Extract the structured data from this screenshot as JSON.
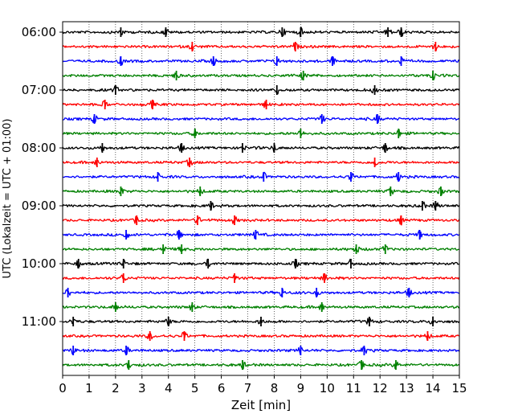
{
  "chart_data": {
    "type": "line",
    "title": "",
    "xlabel": "Zeit  [min]",
    "ylabel": "UTC (Lokalzeit = UTC + 01:00)",
    "xlim": [
      0,
      15
    ],
    "x_ticks": [
      0,
      1,
      2,
      3,
      4,
      5,
      6,
      7,
      8,
      9,
      10,
      11,
      12,
      13,
      14,
      15
    ],
    "y_tick_labels": [
      "06:00",
      "07:00",
      "08:00",
      "09:00",
      "10:00",
      "11:00"
    ],
    "grid": "vertical dotted",
    "legend": "none",
    "colors": [
      "#000000",
      "#ff0000",
      "#0000ff",
      "#008000"
    ],
    "traces": [
      {
        "start": "06:00",
        "color": "#000000",
        "events": [
          2.2,
          3.9,
          8.3,
          9.0,
          12.3,
          12.8
        ]
      },
      {
        "start": "06:15",
        "color": "#ff0000",
        "events": [
          4.9,
          8.8,
          14.1
        ]
      },
      {
        "start": "06:30",
        "color": "#0000ff",
        "events": [
          2.2,
          5.7,
          8.1,
          10.2,
          12.8
        ]
      },
      {
        "start": "06:45",
        "color": "#008000",
        "events": [
          4.3,
          9.1,
          14.0
        ]
      },
      {
        "start": "07:00",
        "color": "#000000",
        "events": [
          2.0,
          8.1,
          11.8
        ]
      },
      {
        "start": "07:15",
        "color": "#ff0000",
        "events": [
          1.6,
          3.4,
          7.7
        ]
      },
      {
        "start": "07:30",
        "color": "#0000ff",
        "events": [
          1.2,
          9.8,
          11.9
        ]
      },
      {
        "start": "07:45",
        "color": "#008000",
        "events": [
          5.0,
          9.0,
          12.7
        ]
      },
      {
        "start": "08:00",
        "color": "#000000",
        "events": [
          1.5,
          4.5,
          6.8,
          8.0,
          12.2
        ]
      },
      {
        "start": "08:15",
        "color": "#ff0000",
        "events": [
          1.3,
          4.8,
          11.8
        ]
      },
      {
        "start": "08:30",
        "color": "#0000ff",
        "events": [
          3.6,
          7.6,
          10.9,
          12.7
        ]
      },
      {
        "start": "08:45",
        "color": "#008000",
        "events": [
          2.2,
          5.2,
          12.4,
          14.3
        ]
      },
      {
        "start": "09:00",
        "color": "#000000",
        "events": [
          5.6,
          13.6,
          14.1
        ]
      },
      {
        "start": "09:15",
        "color": "#ff0000",
        "events": [
          2.8,
          5.1,
          6.5,
          12.8
        ]
      },
      {
        "start": "09:30",
        "color": "#0000ff",
        "events": [
          2.4,
          4.4,
          7.3,
          13.5
        ]
      },
      {
        "start": "09:45",
        "color": "#008000",
        "events": [
          3.8,
          4.5,
          11.1,
          12.2
        ]
      },
      {
        "start": "10:00",
        "color": "#000000",
        "events": [
          0.6,
          2.3,
          5.5,
          8.8,
          10.9
        ]
      },
      {
        "start": "10:15",
        "color": "#ff0000",
        "events": [
          2.3,
          6.5,
          9.9
        ]
      },
      {
        "start": "10:30",
        "color": "#0000ff",
        "events": [
          0.2,
          8.3,
          9.6,
          13.1
        ]
      },
      {
        "start": "10:45",
        "color": "#008000",
        "events": [
          2.0,
          4.9,
          9.8
        ]
      },
      {
        "start": "11:00",
        "color": "#000000",
        "events": [
          0.4,
          4.0,
          7.5,
          11.6,
          14.0
        ]
      },
      {
        "start": "11:15",
        "color": "#ff0000",
        "events": [
          3.3,
          4.6,
          13.8
        ]
      },
      {
        "start": "11:30",
        "color": "#0000ff",
        "events": [
          0.4,
          2.4,
          9.0,
          11.4
        ]
      },
      {
        "start": "11:45",
        "color": "#008000",
        "events": [
          2.5,
          6.8,
          11.3,
          12.6
        ]
      }
    ]
  }
}
